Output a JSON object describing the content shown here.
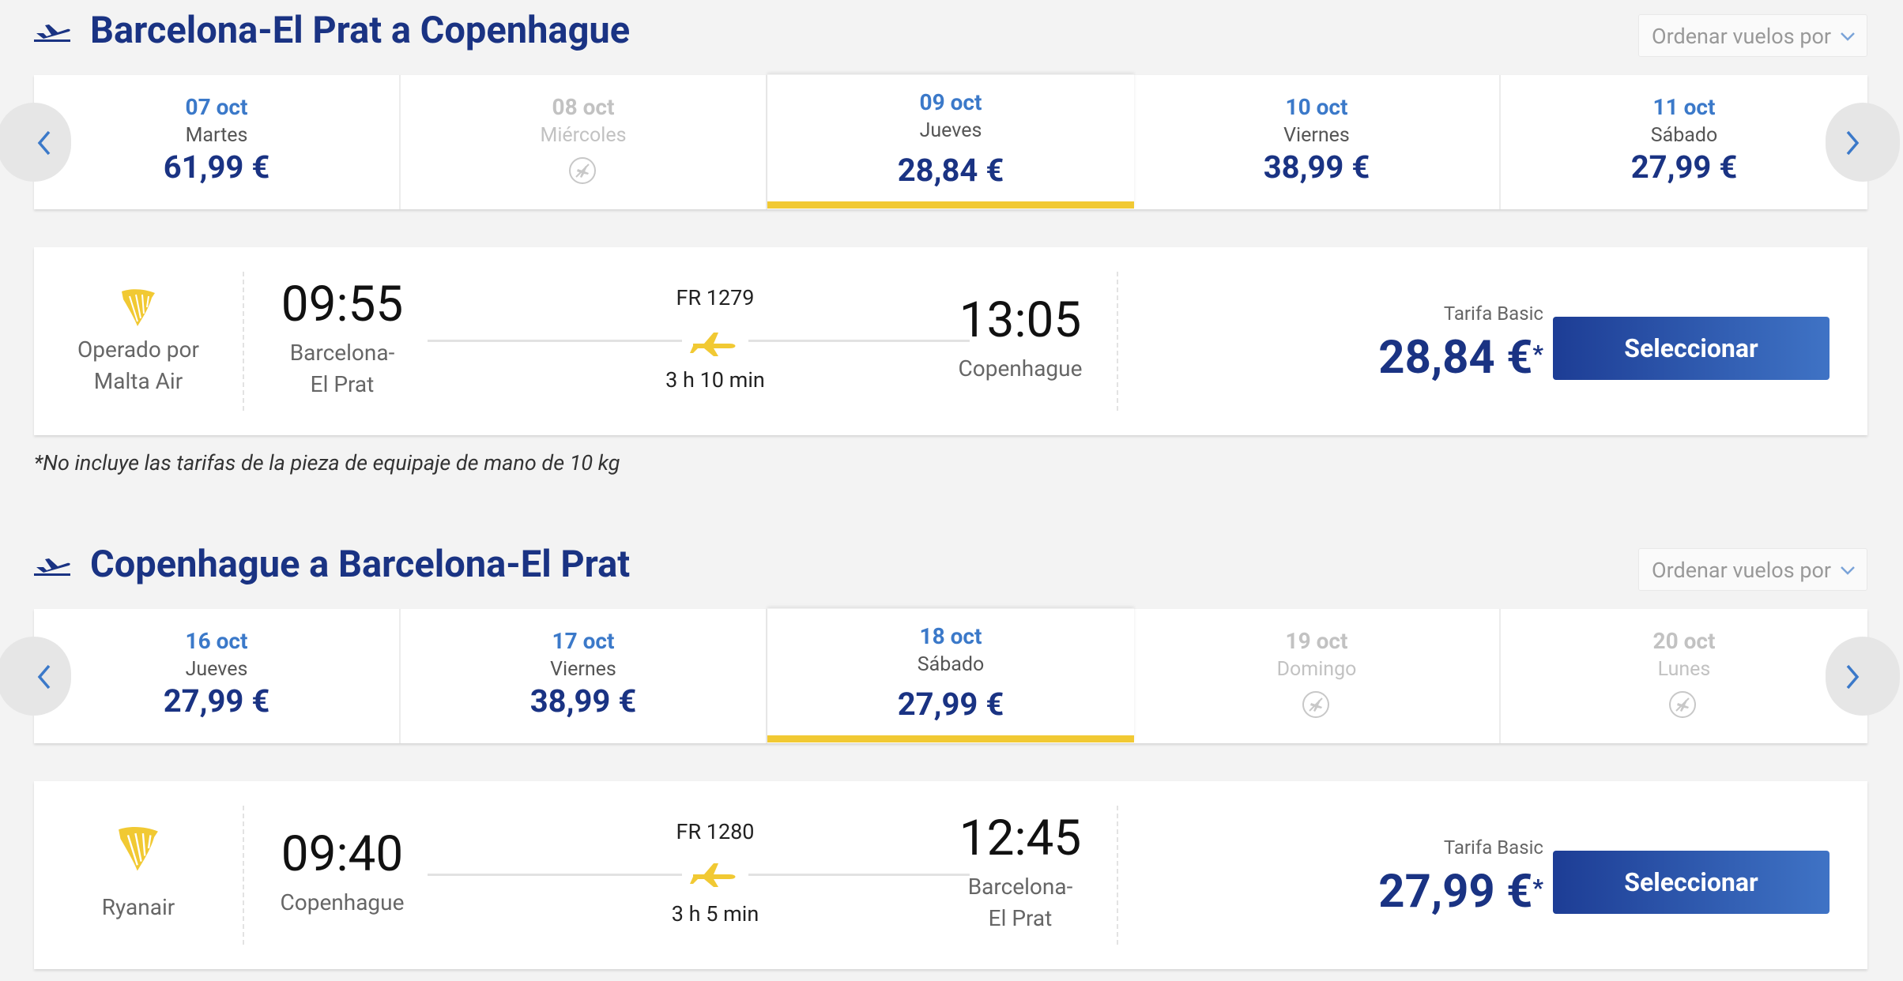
{
  "outbound": {
    "title": "Barcelona-El Prat a Copenhague",
    "sort_label": "Ordenar vuelos por",
    "dates": [
      {
        "date": "07 oct",
        "weekday": "Martes",
        "price": "61,99 €",
        "available": true,
        "selected": false
      },
      {
        "date": "08 oct",
        "weekday": "Miércoles",
        "price": "",
        "available": false,
        "selected": false
      },
      {
        "date": "09 oct",
        "weekday": "Jueves",
        "price": "28,84 €",
        "available": true,
        "selected": true
      },
      {
        "date": "10 oct",
        "weekday": "Viernes",
        "price": "38,99 €",
        "available": true,
        "selected": false
      },
      {
        "date": "11 oct",
        "weekday": "Sábado",
        "price": "27,99 €",
        "available": true,
        "selected": false
      }
    ],
    "flight": {
      "operator_line1": "Operado por",
      "operator_line2": "Malta Air",
      "departure_time": "09:55",
      "departure_city_line1": "Barcelona-",
      "departure_city_line2": "El Prat",
      "flight_number": "FR 1279",
      "duration": "3 h 10 min",
      "arrival_time": "13:05",
      "arrival_city_line1": "Copenhague",
      "arrival_city_line2": "",
      "fare_label": "Tarifa Basic",
      "price": "28,84 €",
      "price_marker": "*",
      "select_label": "Seleccionar"
    },
    "note": "*No incluye las tarifas de la pieza de equipaje de mano de 10 kg"
  },
  "return": {
    "title": "Copenhague a Barcelona-El Prat",
    "sort_label": "Ordenar vuelos por",
    "dates": [
      {
        "date": "16 oct",
        "weekday": "Jueves",
        "price": "27,99 €",
        "available": true,
        "selected": false
      },
      {
        "date": "17 oct",
        "weekday": "Viernes",
        "price": "38,99 €",
        "available": true,
        "selected": false
      },
      {
        "date": "18 oct",
        "weekday": "Sábado",
        "price": "27,99 €",
        "available": true,
        "selected": true
      },
      {
        "date": "19 oct",
        "weekday": "Domingo",
        "price": "",
        "available": false,
        "selected": false
      },
      {
        "date": "20 oct",
        "weekday": "Lunes",
        "price": "",
        "available": false,
        "selected": false
      }
    ],
    "flight": {
      "operator_line1": "Ryanair",
      "operator_line2": "",
      "departure_time": "09:40",
      "departure_city_line1": "Copenhague",
      "departure_city_line2": "",
      "flight_number": "FR 1280",
      "duration": "3 h 5 min",
      "arrival_time": "12:45",
      "arrival_city_line1": "Barcelona-",
      "arrival_city_line2": "El Prat",
      "fare_label": "Tarifa Basic",
      "price": "27,99 €",
      "price_marker": "*",
      "select_label": "Seleccionar"
    }
  },
  "colors": {
    "brand_blue": "#1a3383",
    "date_blue": "#3b79c9",
    "accent_yellow": "#f1c933",
    "disabled": "#c2c2c2"
  },
  "icons": {
    "section_icon": "plane-takeoff-icon",
    "prev": "chevron-left-icon",
    "next": "chevron-right-icon",
    "no_flight": "no-flight-icon",
    "airline_logo": "ryanair-harp-logo",
    "flight_path": "plane-icon"
  }
}
